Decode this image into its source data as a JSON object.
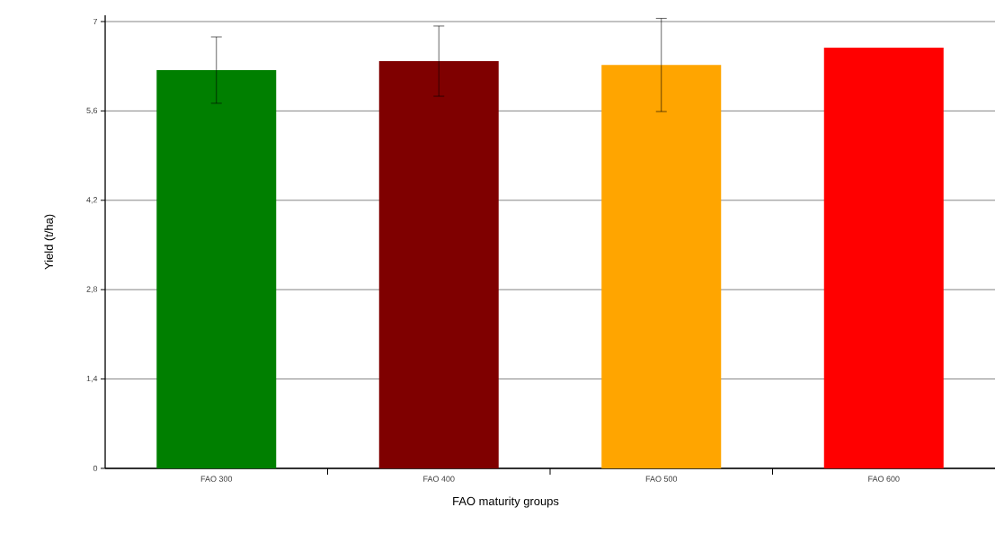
{
  "chart_data": {
    "type": "bar",
    "xlabel": "FAO maturity groups",
    "ylabel": "Yield (t/ha)",
    "categories": [
      "FAO 300",
      "FAO 400",
      "FAO 500",
      "FAO 600"
    ],
    "values": [
      6.24,
      6.38,
      6.32,
      6.59
    ],
    "errors": [
      0.52,
      0.55,
      0.73,
      null
    ],
    "colors": [
      "#007f00",
      "#7f0000",
      "#ffa500",
      "#ff0000"
    ],
    "ylim": [
      0,
      7.1
    ],
    "yticks": [
      0,
      {
        "value": 1.4,
        "label": "1,4"
      },
      {
        "value": 2.8,
        "label": "2,8"
      },
      {
        "value": 4.2,
        "label": "4,2"
      },
      {
        "value": 5.6,
        "label": "5,6"
      },
      7
    ],
    "grid": "y"
  }
}
